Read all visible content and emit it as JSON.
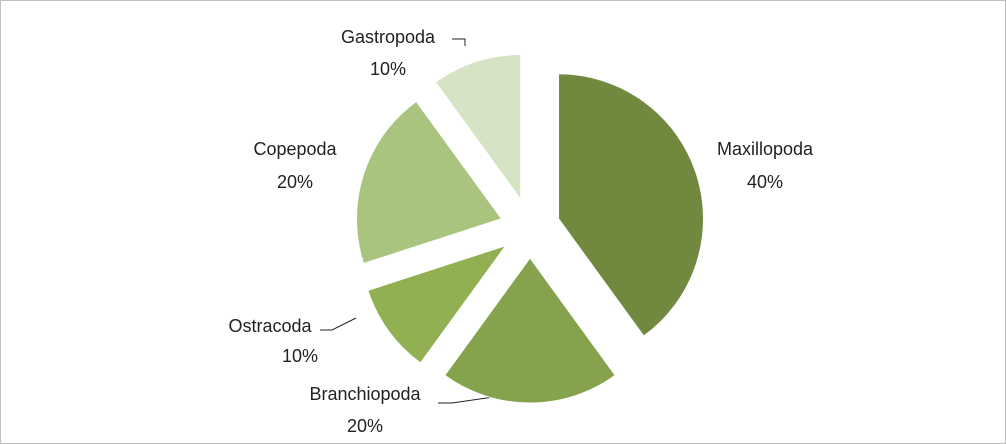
{
  "chart_data": {
    "type": "pie",
    "categories": [
      "Maxillopoda",
      "Branchiopoda",
      "Ostracoda",
      "Copepoda",
      "Gastropoda"
    ],
    "values": [
      40,
      20,
      10,
      20,
      10
    ],
    "value_labels": [
      "40%",
      "20%",
      "10%",
      "20%",
      "10%"
    ],
    "colors": [
      "#71893e",
      "#84a34c",
      "#91b052",
      "#a9c47e",
      "#d7e3c5"
    ],
    "exploded": true
  }
}
